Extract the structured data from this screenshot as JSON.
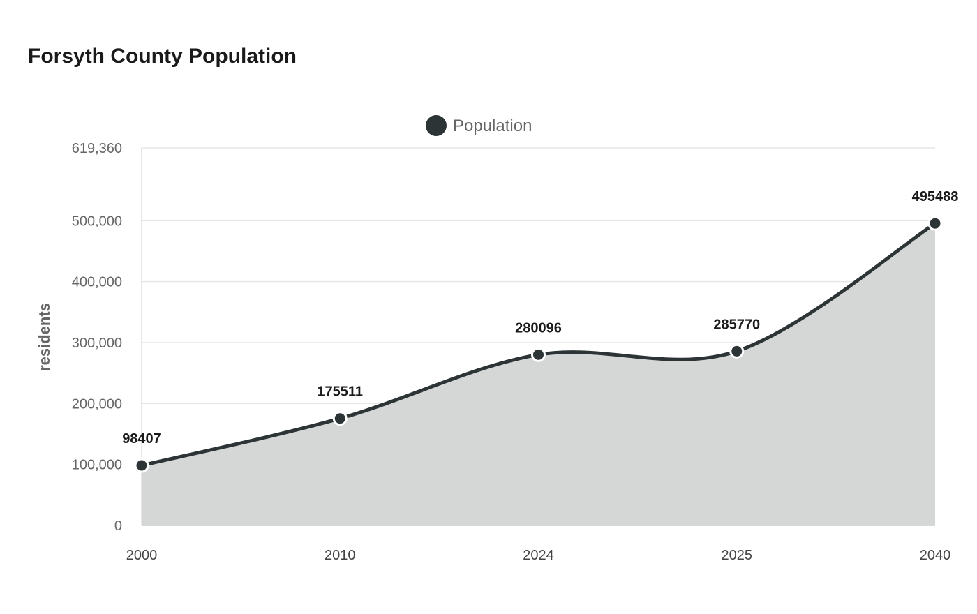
{
  "chart_data": {
    "type": "area",
    "title": "Forsyth County Population",
    "xlabel": "",
    "ylabel": "residents",
    "categories": [
      "2000",
      "2010",
      "2024",
      "2025",
      "2040"
    ],
    "series": [
      {
        "name": "Population",
        "values": [
          98407,
          175511,
          280096,
          285770,
          495488
        ],
        "color": "#2d3436",
        "fill": "#d5d7d6"
      }
    ],
    "ylim": [
      0,
      619360
    ],
    "yticks": [
      0,
      100000,
      200000,
      300000,
      400000,
      500000,
      619360
    ],
    "ytick_labels": [
      "0",
      "100,000",
      "200,000",
      "300,000",
      "400,000",
      "500,000",
      "619,360"
    ],
    "grid": true,
    "legend_position": "top",
    "smooth": true,
    "data_labels": [
      "98407",
      "175511",
      "280096",
      "285770",
      "495488"
    ]
  }
}
